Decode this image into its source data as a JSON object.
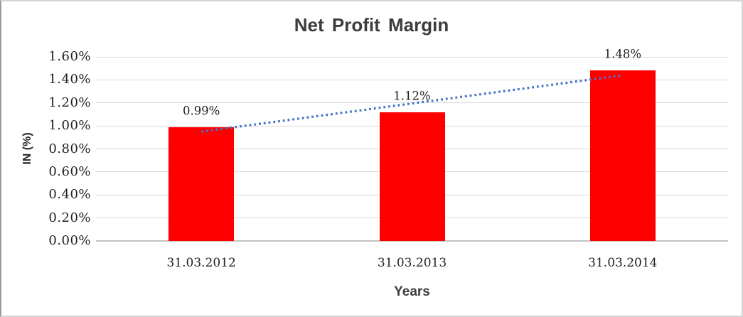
{
  "chart_data": {
    "type": "bar",
    "title": "Net Profit Margin",
    "xlabel": "Years",
    "ylabel": "IN (%)",
    "categories": [
      "31.03.2012",
      "31.03.2013",
      "31.03.2014"
    ],
    "values": [
      0.99,
      1.12,
      1.48
    ],
    "data_labels": [
      "0.99%",
      "1.12%",
      "1.48%"
    ],
    "ylim": [
      0,
      1.6
    ],
    "ytick_step": 0.2,
    "ytick_labels": [
      "0.00%",
      "0.20%",
      "0.40%",
      "0.60%",
      "0.80%",
      "1.00%",
      "1.20%",
      "1.40%",
      "1.60%"
    ],
    "grid": "horizontal",
    "legend": "none",
    "bar_color": "#ff0000",
    "gridline_color": "#d9d9d9",
    "trendline": {
      "type": "linear",
      "style": "dotted",
      "color": "#4472c4",
      "start_value": 0.95,
      "end_value": 1.44
    }
  }
}
